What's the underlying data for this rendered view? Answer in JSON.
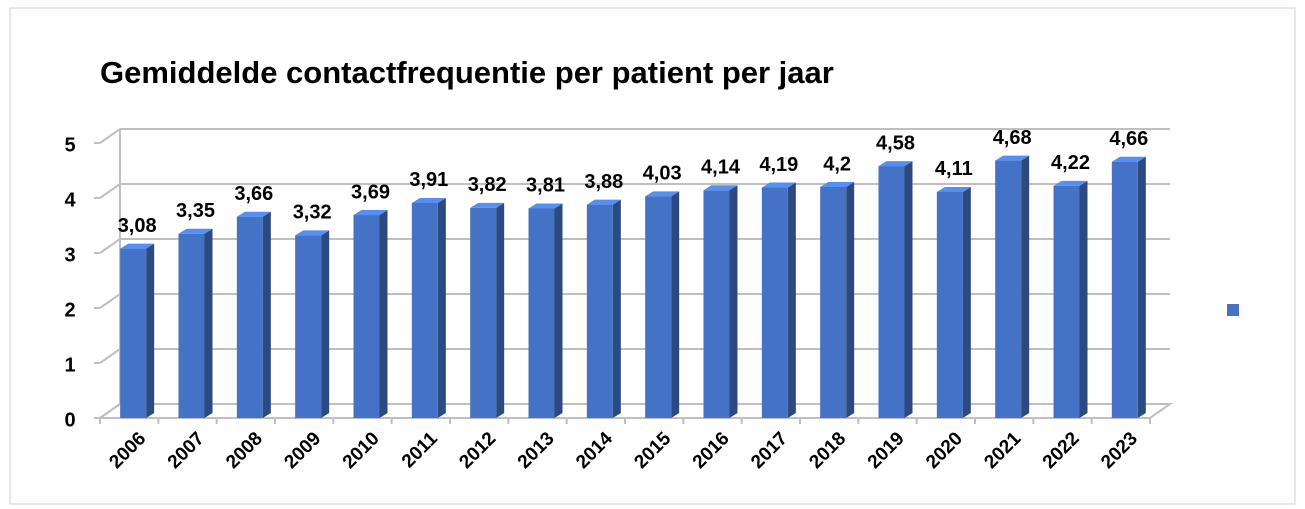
{
  "chart_data": {
    "type": "bar",
    "title": "Gemiddelde contactfrequentie per patient per jaar",
    "categories": [
      "2006",
      "2007",
      "2008",
      "2009",
      "2010",
      "2011",
      "2012",
      "2013",
      "2014",
      "2015",
      "2016",
      "2017",
      "2018",
      "2019",
      "2020",
      "2021",
      "2022",
      "2023"
    ],
    "values": [
      3.08,
      3.35,
      3.66,
      3.32,
      3.69,
      3.91,
      3.82,
      3.81,
      3.88,
      4.03,
      4.14,
      4.19,
      4.2,
      4.58,
      4.11,
      4.68,
      4.22,
      4.66
    ],
    "value_labels": [
      "3,08",
      "3,35",
      "3,66",
      "3,32",
      "3,69",
      "3,91",
      "3,82",
      "3,81",
      "3,88",
      "4,03",
      "4,14",
      "4,19",
      "4,2",
      "4,58",
      "4,11",
      "4,68",
      "4,22",
      "4,66"
    ],
    "color": "#4472c4",
    "ylim": [
      0,
      5
    ],
    "yticks": [
      0,
      1,
      2,
      3,
      4,
      5
    ],
    "grid": true
  }
}
